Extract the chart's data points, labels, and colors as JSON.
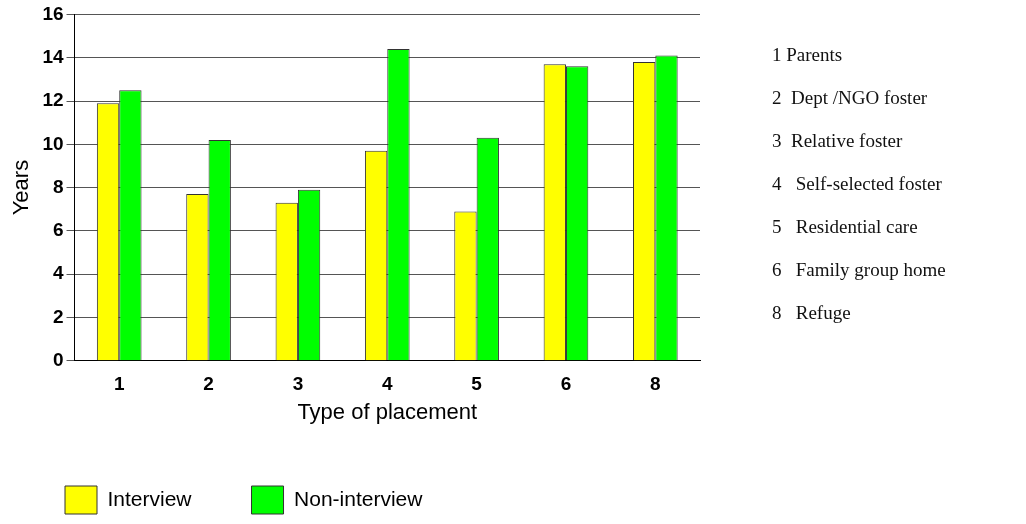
{
  "chart_data": {
    "type": "bar",
    "xlabel": "Type of placement",
    "ylabel": "Years",
    "categories": [
      "1",
      "2",
      "3",
      "4",
      "5",
      "6",
      "8"
    ],
    "series": [
      {
        "name": "Interview",
        "color": "#ffff00",
        "values": [
          11.9,
          7.7,
          7.3,
          9.7,
          6.9,
          13.7,
          13.8
        ]
      },
      {
        "name": "Non-interview",
        "color": "#00ff00",
        "values": [
          12.5,
          10.2,
          7.9,
          14.4,
          10.3,
          13.6,
          14.1
        ]
      }
    ],
    "ylim": [
      0,
      16
    ],
    "yticks": [
      0,
      2,
      4,
      6,
      8,
      10,
      12,
      14,
      16
    ],
    "grid": "y",
    "legend": "bottom left",
    "annotations": [
      "1 Parents",
      "2  Dept /NGO foster",
      "3  Relative foster",
      "4   Self-selected foster",
      "5   Residential care",
      "6   Family group home",
      "8   Refuge"
    ]
  }
}
